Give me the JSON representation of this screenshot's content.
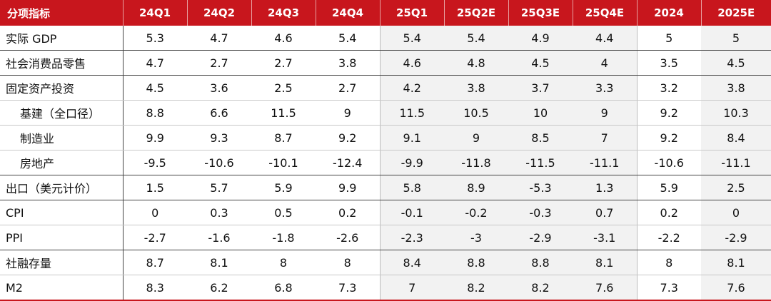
{
  "table": {
    "header": [
      "分项指标",
      "24Q1",
      "24Q2",
      "24Q3",
      "24Q4",
      "25Q1",
      "25Q2E",
      "25Q3E",
      "25Q4E",
      "2024",
      "2025E"
    ],
    "rows": [
      {
        "label": "实际 GDP",
        "values": [
          5.3,
          4.7,
          4.6,
          5.4,
          5.4,
          5.4,
          4.9,
          4.4,
          5,
          5
        ]
      },
      {
        "label": "社会消费品零售",
        "values": [
          4.7,
          2.7,
          2.7,
          3.8,
          4.6,
          4.8,
          4.5,
          4,
          3.5,
          4.5
        ]
      },
      {
        "label": "固定资产投资",
        "values": [
          4.5,
          3.6,
          2.5,
          2.7,
          4.2,
          3.8,
          3.7,
          3.3,
          3.2,
          3.8
        ]
      },
      {
        "label": "基建（全口径）",
        "values": [
          8.8,
          6.6,
          11.5,
          9,
          11.5,
          10.5,
          10,
          9,
          9.2,
          10.3
        ]
      },
      {
        "label": "制造业",
        "values": [
          9.9,
          9.3,
          8.7,
          9.2,
          9.1,
          9,
          8.5,
          7,
          9.2,
          8.4
        ]
      },
      {
        "label": "房地产",
        "values": [
          -9.5,
          -10.6,
          -10.1,
          -12.4,
          -9.9,
          -11.8,
          -11.5,
          -11.1,
          -10.6,
          -11.1
        ]
      },
      {
        "label": "出口（美元计价）",
        "values": [
          1.5,
          5.7,
          5.9,
          9.9,
          5.8,
          8.9,
          -5.3,
          1.3,
          5.9,
          2.5
        ]
      },
      {
        "label": "CPI",
        "values": [
          0,
          0.3,
          0.5,
          0.2,
          -0.1,
          -0.2,
          -0.3,
          0.7,
          0.2,
          0
        ]
      },
      {
        "label": "PPI",
        "values": [
          -2.7,
          -1.6,
          -1.8,
          -2.6,
          -2.3,
          -3,
          -2.9,
          -3.1,
          -2.2,
          -2.9
        ]
      },
      {
        "label": "社融存量",
        "values": [
          8.7,
          8.1,
          8,
          8,
          8.4,
          8.8,
          8.8,
          8.1,
          8,
          8.1
        ]
      },
      {
        "label": "M2",
        "values": [
          8.3,
          6.2,
          6.8,
          7.3,
          7,
          8.2,
          8.2,
          7.6,
          7.3,
          7.6
        ]
      }
    ]
  }
}
